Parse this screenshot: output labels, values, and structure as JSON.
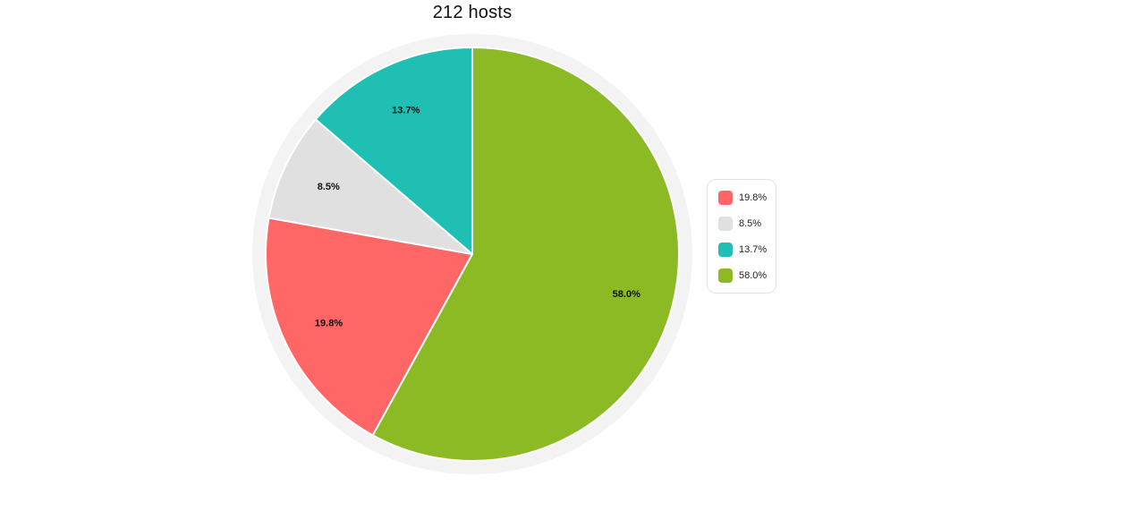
{
  "chart_data": {
    "type": "pie",
    "title": "212 hosts",
    "total": 212,
    "slices": [
      {
        "label": "19.8%",
        "value": 19.8,
        "color": "#ff6666"
      },
      {
        "label": "8.5%",
        "value": 8.5,
        "color": "#e0e0e0"
      },
      {
        "label": "13.7%",
        "value": 13.7,
        "color": "#20bfb4"
      },
      {
        "label": "58.0%",
        "value": 58.0,
        "color": "#8bba25"
      }
    ],
    "legend": {
      "position": "right",
      "items": [
        {
          "label": "19.8%",
          "color": "#ff6666"
        },
        {
          "label": "8.5%",
          "color": "#e0e0e0"
        },
        {
          "label": "13.7%",
          "color": "#20bfb4"
        },
        {
          "label": "58.0%",
          "color": "#8bba25"
        }
      ]
    },
    "outer_ring_color": "#f3f3f3"
  }
}
